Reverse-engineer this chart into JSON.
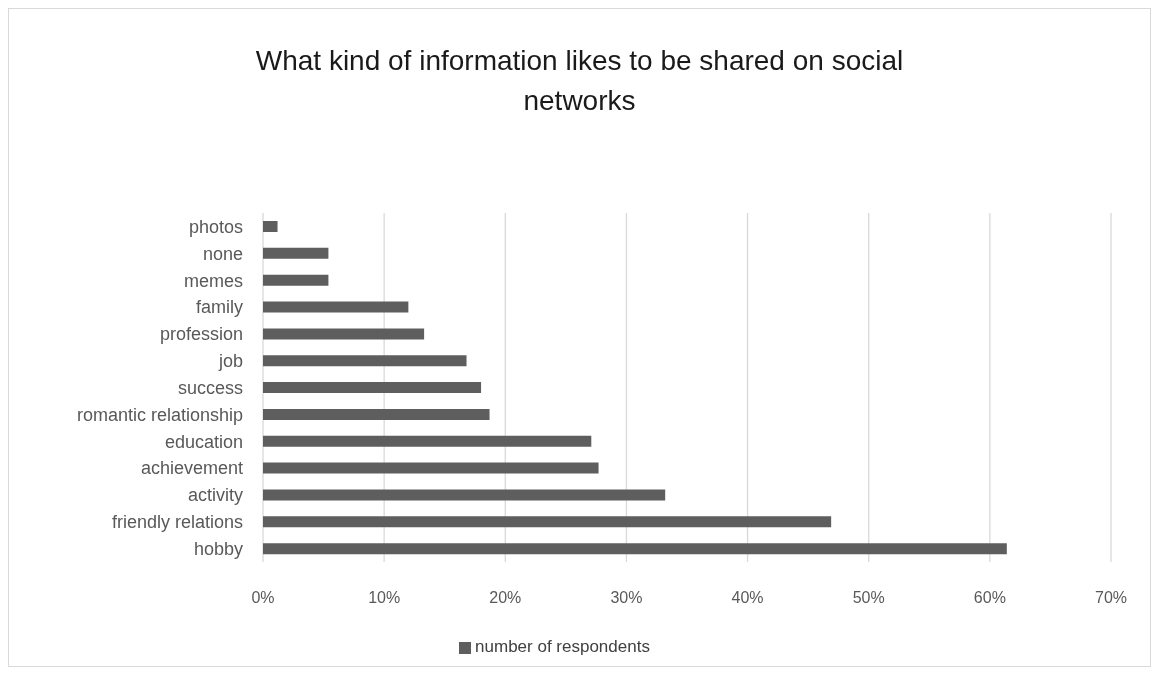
{
  "chart_data": {
    "type": "bar",
    "title": "What kind of information likes to be shared on social networks",
    "orientation": "horizontal",
    "categories": [
      "photos",
      "none",
      "memes",
      "family",
      "profession",
      "job",
      "success",
      "romantic relationship",
      "education",
      "achievement",
      "activity",
      "friendly relations",
      "hobby"
    ],
    "series": [
      {
        "name": "number of respondents",
        "color": "#5e5e5e",
        "values": [
          1.2,
          5.4,
          5.4,
          12.0,
          13.3,
          16.8,
          18.0,
          18.7,
          27.1,
          27.7,
          33.2,
          46.9,
          61.4
        ]
      }
    ],
    "xlim": [
      0,
      70
    ],
    "xticks": [
      {
        "value": 0,
        "label": "0%"
      },
      {
        "value": 10,
        "label": "10%"
      },
      {
        "value": 20,
        "label": "20%"
      },
      {
        "value": 30,
        "label": "30%"
      },
      {
        "value": 40,
        "label": "40%"
      },
      {
        "value": 50,
        "label": "50%"
      },
      {
        "value": 60,
        "label": "60%"
      },
      {
        "value": 70,
        "label": "70%"
      }
    ],
    "grid": "x",
    "legend": "bottom"
  }
}
